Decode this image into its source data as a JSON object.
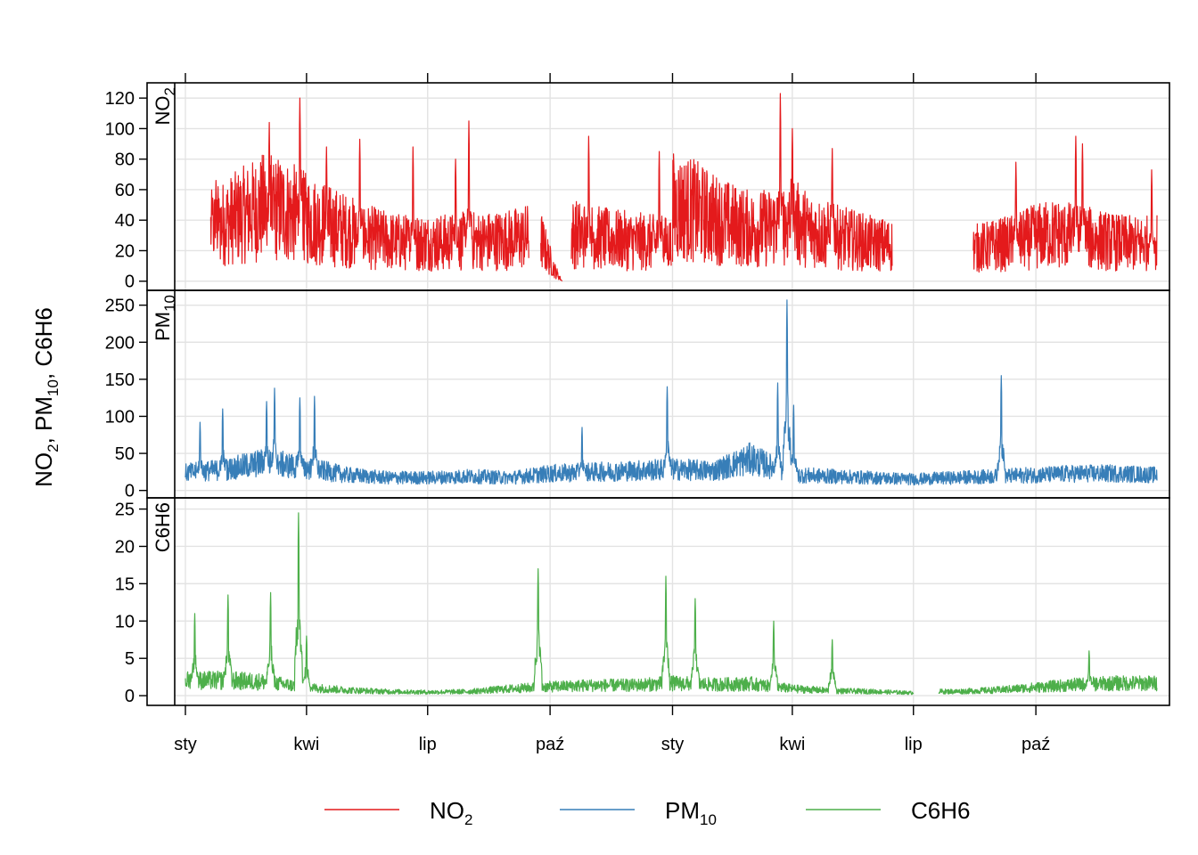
{
  "chart_data": {
    "type": "line",
    "layout": "stacked panels, shared x axis",
    "ylabel_parts": [
      {
        "base": "NO",
        "sub": "2",
        "sep": ", "
      },
      {
        "base": "PM",
        "sub": "10",
        "sep": ", "
      },
      {
        "base": "C6H6",
        "sub": "",
        "sep": ""
      }
    ],
    "x": {
      "start": "2016-01-01",
      "end": "2017-12-31",
      "tick_dates": [
        "2016-01-01",
        "2016-04-01",
        "2016-07-01",
        "2016-10-01",
        "2017-01-01",
        "2017-04-01",
        "2017-07-01",
        "2017-10-01"
      ],
      "tick_labels": [
        "sty",
        "kwi",
        "lip",
        "paź",
        "sty",
        "kwi",
        "lip",
        "paź"
      ]
    },
    "grid": true,
    "legend": {
      "placement": "bottom",
      "items": [
        {
          "base": "NO",
          "sub": "2",
          "color": "#E41A1C"
        },
        {
          "base": "PM",
          "sub": "10",
          "color": "#377EB8"
        },
        {
          "base": "C6H6",
          "sub": "",
          "color": "#4DAF4A"
        }
      ]
    },
    "panels": [
      {
        "id": "no2",
        "strip_base": "NO",
        "strip_sub": "2",
        "color": "#E41A1C",
        "ylim": [
          -6,
          130
        ],
        "yticks": [
          0,
          20,
          40,
          60,
          80,
          100,
          120
        ],
        "ytick_labels": [
          "0",
          "20",
          "40",
          "60",
          "80",
          "100",
          "120"
        ],
        "series": [
          {
            "x": [
              "2016-01-20",
              "2016-02-01",
              "2016-02-15",
              "2016-03-01",
              "2016-03-15",
              "2016-04-01",
              "2016-04-15",
              "2016-05-01",
              "2016-05-15",
              "2016-06-01",
              "2016-06-15",
              "2016-07-01",
              "2016-07-15",
              "2016-08-01",
              "2016-08-15",
              "2016-09-01",
              "2016-09-15"
            ],
            "y": [
              35,
              40,
              45,
              50,
              48,
              42,
              38,
              34,
              30,
              27,
              26,
              26,
              26,
              27,
              27,
              28,
              30
            ]
          },
          {
            "x": [
              "2016-09-24",
              "2016-09-29",
              "2016-10-04",
              "2016-10-10"
            ],
            "y": [
              28,
              18,
              8,
              0
            ]
          },
          {
            "x": [
              "2016-10-17",
              "2016-11-01",
              "2016-11-15",
              "2016-12-01",
              "2016-12-15",
              "2016-12-31"
            ],
            "y": [
              32,
              30,
              28,
              27,
              26,
              25
            ]
          },
          {
            "x": [
              "2017-01-01",
              "2017-01-15",
              "2017-02-01",
              "2017-02-15",
              "2017-03-01",
              "2017-03-15",
              "2017-04-01",
              "2017-04-15",
              "2017-05-01",
              "2017-05-15",
              "2017-06-01",
              "2017-06-15"
            ],
            "y": [
              50,
              48,
              42,
              38,
              35,
              36,
              40,
              34,
              30,
              28,
              25,
              24
            ]
          },
          {
            "x": [
              "2017-08-15",
              "2017-09-01",
              "2017-09-15",
              "2017-10-01",
              "2017-10-15",
              "2017-11-01",
              "2017-11-15",
              "2017-12-01",
              "2017-12-15",
              "2017-12-31"
            ],
            "y": [
              22,
              24,
              26,
              30,
              32,
              30,
              28,
              26,
              25,
              26
            ]
          }
        ],
        "peaks": [
          [
            "2016-01-24",
            66
          ],
          [
            "2016-03-04",
            104
          ],
          [
            "2016-03-27",
            120
          ],
          [
            "2016-04-16",
            88
          ],
          [
            "2016-05-11",
            93
          ],
          [
            "2016-06-20",
            88
          ],
          [
            "2016-07-22",
            80
          ],
          [
            "2016-08-01",
            105
          ],
          [
            "2016-10-30",
            95
          ],
          [
            "2016-12-22",
            85
          ],
          [
            "2017-03-23",
            123
          ],
          [
            "2017-04-01",
            100
          ],
          [
            "2017-05-01",
            87
          ],
          [
            "2017-09-16",
            78
          ],
          [
            "2017-10-31",
            95
          ],
          [
            "2017-11-05",
            90
          ],
          [
            "2017-12-27",
            73
          ]
        ]
      },
      {
        "id": "pm10",
        "strip_base": "PM",
        "strip_sub": "10",
        "color": "#377EB8",
        "ylim": [
          -10,
          270
        ],
        "yticks": [
          0,
          50,
          100,
          150,
          200,
          250
        ],
        "ytick_labels": [
          "0",
          "50",
          "100",
          "150",
          "200",
          "250"
        ],
        "series": [
          {
            "x": [
              "2016-01-01",
              "2016-02-01",
              "2016-03-01",
              "2016-04-01",
              "2016-05-01",
              "2016-06-01",
              "2016-07-01",
              "2016-08-01",
              "2016-09-01",
              "2016-10-01",
              "2016-11-01",
              "2016-12-01",
              "2017-01-01",
              "2017-02-01",
              "2017-03-01",
              "2017-04-01",
              "2017-05-01",
              "2017-06-01",
              "2017-07-01",
              "2017-08-01",
              "2017-09-01",
              "2017-10-01",
              "2017-11-01",
              "2017-12-01",
              "2017-12-31"
            ],
            "y": [
              25,
              30,
              40,
              32,
              22,
              18,
              18,
              20,
              18,
              24,
              26,
              28,
              30,
              28,
              45,
              22,
              20,
              18,
              16,
              18,
              20,
              22,
              24,
              24,
              22
            ]
          }
        ],
        "peaks": [
          [
            "2016-01-12",
            92
          ],
          [
            "2016-01-29",
            110
          ],
          [
            "2016-03-02",
            120
          ],
          [
            "2016-03-08",
            138
          ],
          [
            "2016-03-27",
            125
          ],
          [
            "2016-04-07",
            127
          ],
          [
            "2016-10-25",
            85
          ],
          [
            "2016-12-28",
            140
          ],
          [
            "2017-03-21",
            145
          ],
          [
            "2017-03-28",
            257
          ],
          [
            "2017-04-02",
            115
          ],
          [
            "2017-09-05",
            155
          ]
        ]
      },
      {
        "id": "c6h6",
        "strip_base": "C6H6",
        "strip_sub": "",
        "color": "#4DAF4A",
        "ylim": [
          -1.3,
          26.5
        ],
        "yticks": [
          0,
          5,
          10,
          15,
          20,
          25
        ],
        "ytick_labels": [
          "0",
          "5",
          "10",
          "15",
          "20",
          "25"
        ],
        "series": [
          {
            "x": [
              "2016-01-01",
              "2016-02-01",
              "2016-03-01",
              "2016-04-01",
              "2016-05-01",
              "2016-06-01",
              "2016-07-01",
              "2016-08-01",
              "2016-09-01",
              "2016-10-01",
              "2016-11-01",
              "2016-12-01",
              "2017-01-01",
              "2017-02-01",
              "2017-03-01",
              "2017-04-01",
              "2017-05-01",
              "2017-06-01",
              "2017-07-01"
            ],
            "y": [
              2.2,
              2.2,
              2.0,
              1.2,
              0.8,
              0.6,
              0.5,
              0.6,
              1.0,
              1.3,
              1.5,
              1.5,
              1.8,
              1.6,
              1.7,
              1.0,
              0.7,
              0.6,
              0.4
            ]
          },
          {
            "x": [
              "2017-07-20",
              "2017-08-01",
              "2017-09-01",
              "2017-10-01",
              "2017-11-01",
              "2017-12-01",
              "2017-12-31"
            ],
            "y": [
              0.6,
              0.6,
              0.8,
              1.2,
              1.6,
              1.8,
              1.8
            ]
          }
        ],
        "peaks": [
          [
            "2016-01-08",
            11
          ],
          [
            "2016-02-02",
            13.5
          ],
          [
            "2016-03-05",
            13.8
          ],
          [
            "2016-03-26",
            24.5
          ],
          [
            "2016-04-01",
            8
          ],
          [
            "2016-09-22",
            17
          ],
          [
            "2016-12-27",
            16
          ],
          [
            "2017-01-18",
            13
          ],
          [
            "2017-03-18",
            10
          ],
          [
            "2017-05-01",
            7.5
          ],
          [
            "2017-11-10",
            6
          ]
        ]
      }
    ]
  }
}
